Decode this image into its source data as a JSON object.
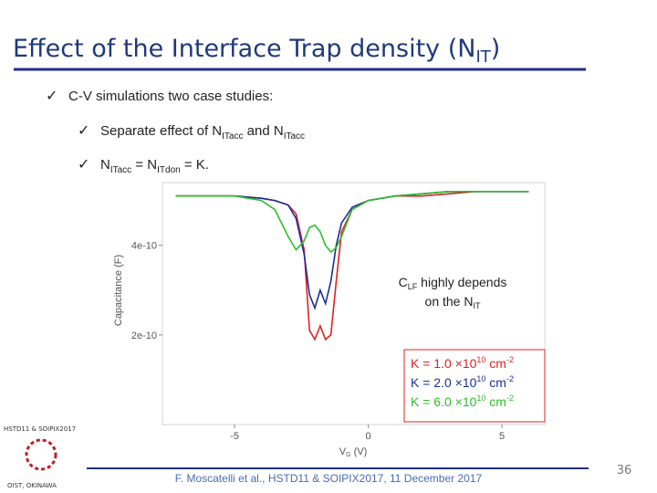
{
  "slide": {
    "title": "Effect of the Interface Trap density (N",
    "title_sub": "IT",
    "title_end": ")",
    "bullets": [
      {
        "parts": [
          {
            "text": "C-V simulations two case studies:"
          }
        ]
      },
      {
        "parts": [
          {
            "text": "Separate effect of N"
          },
          {
            "text": "ITacc",
            "sub": true
          },
          {
            "text": " and N"
          },
          {
            "text": "ITacc",
            "sub": true
          }
        ]
      },
      {
        "parts": [
          {
            "text": "N"
          },
          {
            "text": "ITacc",
            "sub": true
          },
          {
            "text": " = N"
          },
          {
            "text": "ITdon",
            "sub": true
          },
          {
            "text": " = K."
          }
        ]
      }
    ],
    "footer": "F. Moscatelli et al., HSTD11 & SOIPIX2017, 11 December 2017",
    "page": "36",
    "logo_top": "HSTD11 & SOIPIX2017",
    "logo_bottom": "OIST, OKINAWA"
  },
  "chart_data": {
    "type": "line",
    "x_label": "V",
    "x_label_sub": "G",
    "x_label_end": " (V)",
    "y_label": "Capacitance (F)",
    "xlim": [
      -7.7,
      6.6
    ],
    "xticks": [
      -5,
      0,
      5
    ],
    "ylim": [
      0,
      5.4e-10
    ],
    "yticks": [
      2e-10,
      4e-10
    ],
    "x": [
      -7.2,
      -5,
      -4,
      -3.5,
      -3,
      -2.7,
      -2.4,
      -2.2,
      -2,
      -1.8,
      -1.6,
      -1.4,
      -1.2,
      -1,
      -0.6,
      0,
      1,
      2,
      3,
      4,
      6
    ],
    "series": [
      {
        "name": "K = 1.0 ×10",
        "name_sup": "10",
        "unit": " cm",
        "unit_sup": "-2",
        "color": "#e02020",
        "values": [
          5.1e-10,
          5.1e-10,
          5.05e-10,
          5e-10,
          4.9e-10,
          4.7e-10,
          3.9e-10,
          2.1e-10,
          1.9e-10,
          2.2e-10,
          1.9e-10,
          2e-10,
          3.2e-10,
          4.3e-10,
          4.8e-10,
          5e-10,
          5.1e-10,
          5.1e-10,
          5.15e-10,
          5.2e-10,
          5.2e-10
        ]
      },
      {
        "name": "K = 2.0 ×10",
        "name_sup": "10",
        "unit": " cm",
        "unit_sup": "-2",
        "color": "#1a2f9a",
        "values": [
          5.1e-10,
          5.1e-10,
          5.05e-10,
          5e-10,
          4.9e-10,
          4.6e-10,
          3.8e-10,
          2.9e-10,
          2.6e-10,
          3e-10,
          2.7e-10,
          3.2e-10,
          4e-10,
          4.5e-10,
          4.85e-10,
          5e-10,
          5.1e-10,
          5.15e-10,
          5.2e-10,
          5.2e-10,
          5.2e-10
        ]
      },
      {
        "name": "K = 6.0 ×10",
        "name_sup": "10",
        "unit": " cm",
        "unit_sup": "-2",
        "color": "#2bbf2b",
        "values": [
          5.1e-10,
          5.1e-10,
          5e-10,
          4.8e-10,
          4.2e-10,
          3.9e-10,
          4.1e-10,
          4.4e-10,
          4.45e-10,
          4.3e-10,
          4e-10,
          3.85e-10,
          3.95e-10,
          4.2e-10,
          4.8e-10,
          5e-10,
          5.1e-10,
          5.15e-10,
          5.2e-10,
          5.2e-10,
          5.2e-10
        ]
      }
    ],
    "annotation": {
      "c": "C",
      "c_sub": "LF",
      "line1": " highly depends",
      "line2": "on the N",
      "line2_sub": "IT"
    }
  }
}
